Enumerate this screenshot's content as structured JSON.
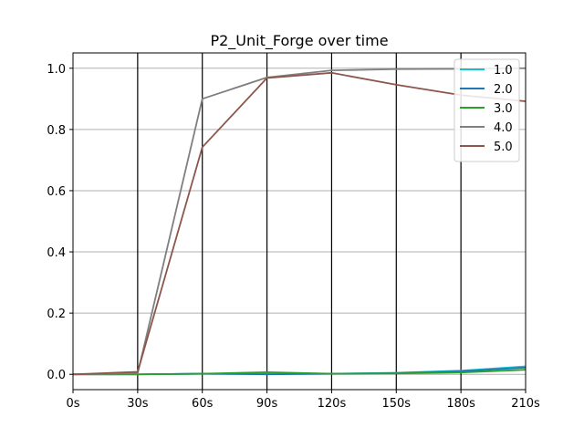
{
  "chart_data": {
    "type": "line",
    "title": "P2_Unit_Forge over time",
    "xlabel": "",
    "ylabel": "",
    "categories": [
      "0s",
      "30s",
      "60s",
      "90s",
      "120s",
      "150s",
      "180s",
      "210s"
    ],
    "x": [
      0,
      30,
      60,
      90,
      120,
      150,
      180,
      210
    ],
    "xlim": [
      0,
      210
    ],
    "ylim": [
      -0.05,
      1.05
    ],
    "yticks": [
      0.0,
      0.2,
      0.4,
      0.6,
      0.8,
      1.0
    ],
    "ytick_labels": [
      "0.0",
      "0.2",
      "0.4",
      "0.6",
      "0.8",
      "1.0"
    ],
    "grid": "horizontal",
    "vertical_markers": [
      30,
      60,
      90,
      120,
      150,
      180
    ],
    "legend_position": "top-right",
    "series": [
      {
        "name": "1.0",
        "color": "#17becf",
        "values": [
          0.0,
          0.0,
          0.002,
          0.002,
          0.002,
          0.005,
          0.012,
          0.026
        ]
      },
      {
        "name": "2.0",
        "color": "#1f77b4",
        "values": [
          0.0,
          0.0,
          0.002,
          0.0,
          0.002,
          0.004,
          0.01,
          0.022
        ]
      },
      {
        "name": "3.0",
        "color": "#2ca02c",
        "values": [
          0.0,
          0.0,
          0.002,
          0.007,
          0.002,
          0.003,
          0.006,
          0.015
        ]
      },
      {
        "name": "4.0",
        "color": "#7f7f7f",
        "values": [
          0.0,
          0.003,
          0.9,
          0.97,
          0.993,
          0.997,
          0.998,
          1.0
        ]
      },
      {
        "name": "5.0",
        "color": "#8c564b",
        "values": [
          0.0,
          0.008,
          0.742,
          0.968,
          0.985,
          0.946,
          0.912,
          0.892
        ]
      }
    ]
  }
}
